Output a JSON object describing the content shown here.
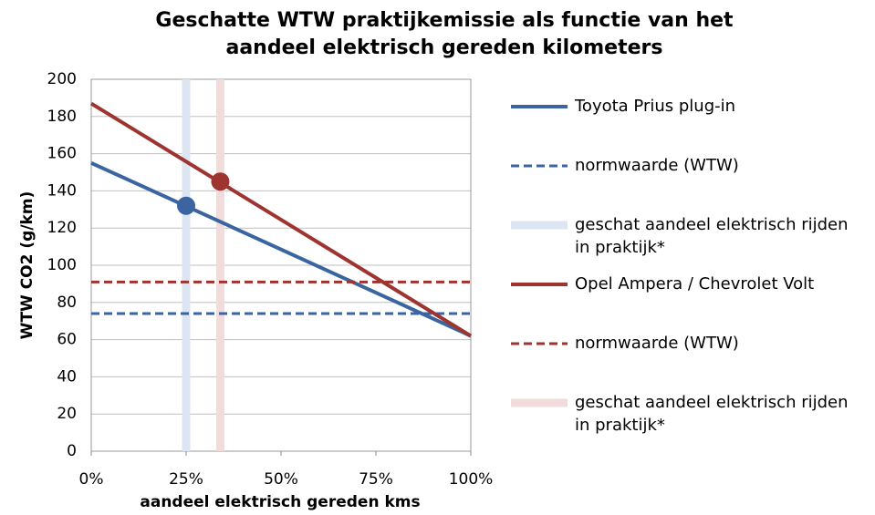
{
  "chart_data": {
    "type": "line",
    "title": "Geschatte WTW praktijkemissie als functie van het aandeel elektrisch gereden kilometers",
    "x_label": "aandeel elektrisch gereden kms",
    "y_label": "WTW CO2 (g/km)",
    "xlim": [
      0,
      100
    ],
    "ylim": [
      0,
      200
    ],
    "xticks": [
      {
        "value": 0,
        "label": "0%"
      },
      {
        "value": 25,
        "label": "25%"
      },
      {
        "value": 50,
        "label": "50%"
      },
      {
        "value": 75,
        "label": "75%"
      },
      {
        "value": 100,
        "label": "100%"
      }
    ],
    "yticks": [
      0,
      20,
      40,
      60,
      80,
      100,
      120,
      140,
      160,
      180,
      200
    ],
    "grid": true,
    "series": [
      {
        "name": "Toyota Prius plug-in",
        "color": "#3a65a0",
        "style": "solid",
        "x": [
          0,
          100
        ],
        "values": [
          155,
          62
        ],
        "highlight": {
          "x": 25,
          "y": 132
        }
      },
      {
        "name": "normwaarde (WTW)",
        "color": "#3a65a0",
        "style": "dashed",
        "x": [
          0,
          100
        ],
        "values": [
          74,
          74
        ]
      },
      {
        "name": "geschat aandeel elektrisch rijden in praktijk*",
        "color": "#dce6f2",
        "style": "band",
        "x": [
          25,
          25
        ],
        "values": [
          0,
          200
        ]
      },
      {
        "name": "Opel Ampera / Chevrolet Volt",
        "color": "#9e3430",
        "style": "solid",
        "x": [
          0,
          100
        ],
        "values": [
          187,
          62
        ],
        "highlight": {
          "x": 34,
          "y": 145
        }
      },
      {
        "name": "normwaarde (WTW)",
        "color": "#9e3430",
        "style": "dashed",
        "x": [
          0,
          100
        ],
        "values": [
          91,
          91
        ]
      },
      {
        "name": "geschat aandeel elektrisch rijden in praktijk*",
        "color": "#f2dcdb",
        "style": "band",
        "x": [
          34,
          34
        ],
        "values": [
          0,
          200
        ]
      }
    ]
  }
}
